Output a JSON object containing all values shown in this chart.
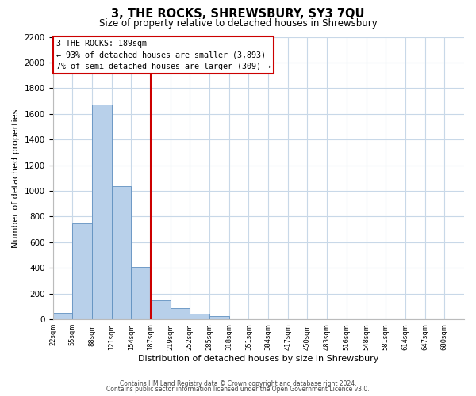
{
  "title": "3, THE ROCKS, SHREWSBURY, SY3 7QU",
  "subtitle": "Size of property relative to detached houses in Shrewsbury",
  "xlabel": "Distribution of detached houses by size in Shrewsbury",
  "ylabel": "Number of detached properties",
  "bin_labels": [
    "22sqm",
    "55sqm",
    "88sqm",
    "121sqm",
    "154sqm",
    "187sqm",
    "219sqm",
    "252sqm",
    "285sqm",
    "318sqm",
    "351sqm",
    "384sqm",
    "417sqm",
    "450sqm",
    "483sqm",
    "516sqm",
    "548sqm",
    "581sqm",
    "614sqm",
    "647sqm",
    "680sqm"
  ],
  "bar_values": [
    50,
    750,
    1670,
    1035,
    410,
    150,
    90,
    45,
    28,
    0,
    0,
    0,
    0,
    0,
    0,
    0,
    0,
    0,
    0,
    0
  ],
  "bar_color": "#b8d0ea",
  "bar_edge_color": "#6090c0",
  "vline_color": "#cc0000",
  "vline_x_index": 5,
  "annotation_title": "3 THE ROCKS: 189sqm",
  "annotation_line1": "← 93% of detached houses are smaller (3,893)",
  "annotation_line2": "7% of semi-detached houses are larger (309) →",
  "annotation_box_color": "#ffffff",
  "annotation_box_edge": "#cc0000",
  "ylim": [
    0,
    2200
  ],
  "yticks": [
    0,
    200,
    400,
    600,
    800,
    1000,
    1200,
    1400,
    1600,
    1800,
    2000,
    2200
  ],
  "footer1": "Contains HM Land Registry data © Crown copyright and database right 2024.",
  "footer2": "Contains public sector information licensed under the Open Government Licence v3.0.",
  "background_color": "#ffffff",
  "grid_color": "#c8d8e8"
}
